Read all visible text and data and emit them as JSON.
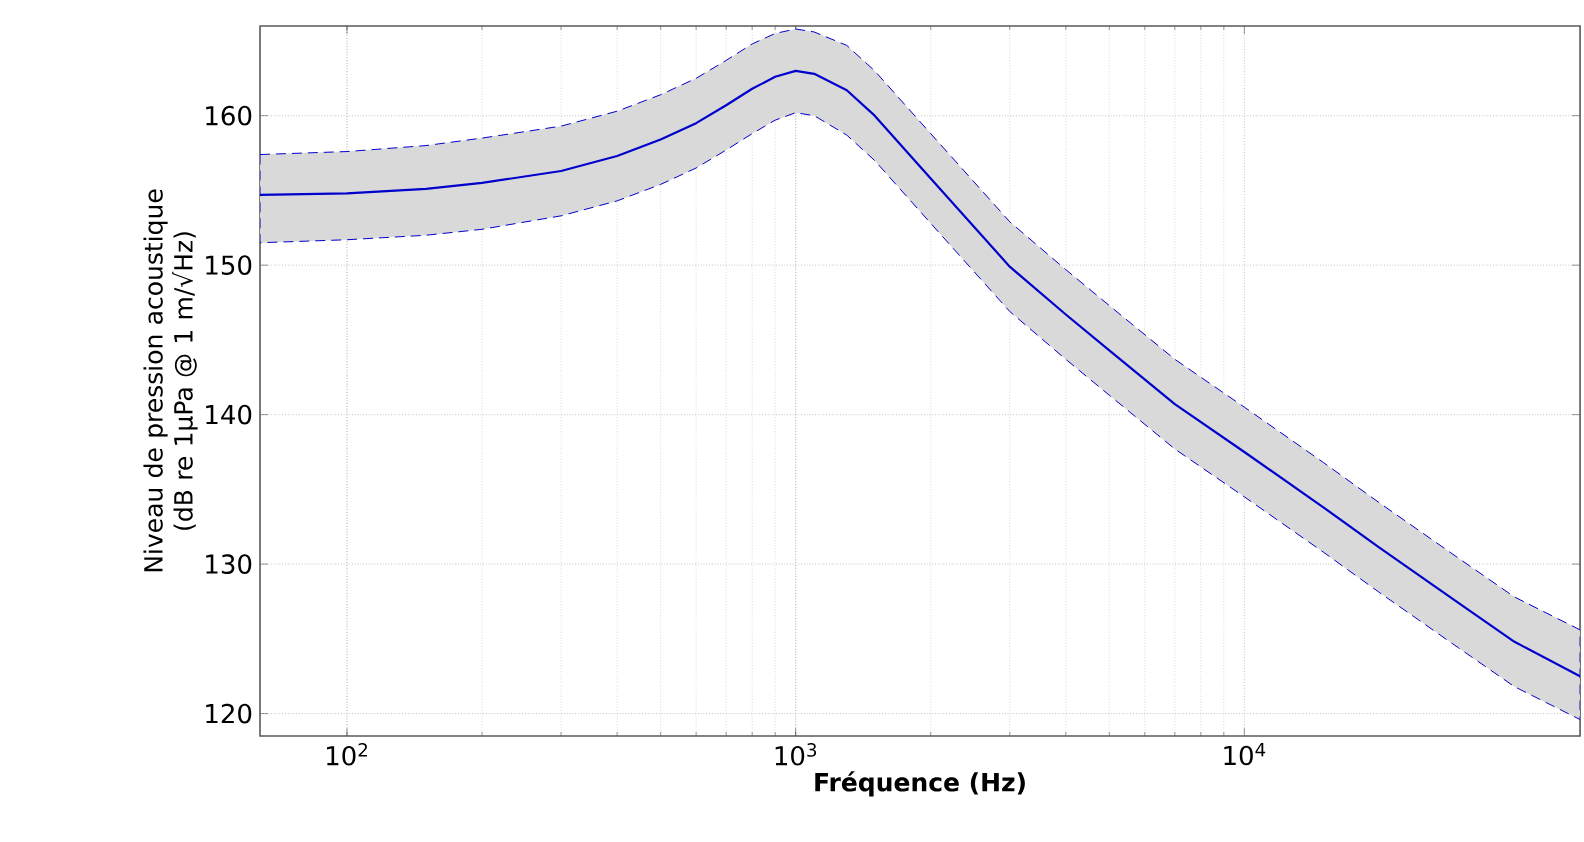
{
  "chart_data": {
    "type": "line",
    "xlabel": "Fréquence (Hz)",
    "ylabel": "Niveau de pression acoustique (dB re 1µPa @ 1 m/√Hz)",
    "log": "x",
    "grid": true,
    "line_style": "solid",
    "xlim": [
      64,
      56000
    ],
    "ylim": [
      118.5,
      166
    ],
    "xticks": [
      {
        "value": 100,
        "label": "10$^{2}$"
      },
      {
        "value": 1000,
        "label": "10$^{3}$"
      },
      {
        "value": 10000,
        "label": "10$^{4}$"
      }
    ],
    "yticks": [
      120,
      130,
      140,
      150,
      160
    ],
    "x": [
      64,
      100,
      150,
      200,
      300,
      400,
      500,
      600,
      700,
      800,
      900,
      1000,
      1100,
      1300,
      1500,
      2000,
      3000,
      4000,
      5000,
      7000,
      10000,
      15000,
      20000,
      30000,
      40000,
      56000
    ],
    "series": [
      {
        "color": "#0000cc",
        "values": [
          154.7,
          154.8,
          155.1,
          155.5,
          156.3,
          157.3,
          158.4,
          159.5,
          160.7,
          161.8,
          162.6,
          163.0,
          162.8,
          161.7,
          160.0,
          155.8,
          149.9,
          146.7,
          144.3,
          140.7,
          137.5,
          133.8,
          131.1,
          127.4,
          124.8,
          122.5
        ],
        "lower": [
          151.5,
          151.7,
          152.0,
          152.4,
          153.3,
          154.3,
          155.4,
          156.5,
          157.7,
          158.8,
          159.7,
          160.2,
          160.0,
          158.7,
          157.0,
          152.8,
          146.9,
          143.7,
          141.3,
          137.7,
          134.5,
          130.8,
          128.1,
          124.4,
          121.8,
          119.6
        ],
        "upper": [
          157.4,
          157.6,
          158.0,
          158.5,
          159.3,
          160.3,
          161.4,
          162.5,
          163.7,
          164.8,
          165.5,
          165.8,
          165.6,
          164.7,
          163.0,
          158.8,
          152.9,
          149.7,
          147.3,
          143.7,
          140.5,
          136.8,
          134.1,
          130.4,
          127.8,
          125.6
        ]
      }
    ]
  }
}
